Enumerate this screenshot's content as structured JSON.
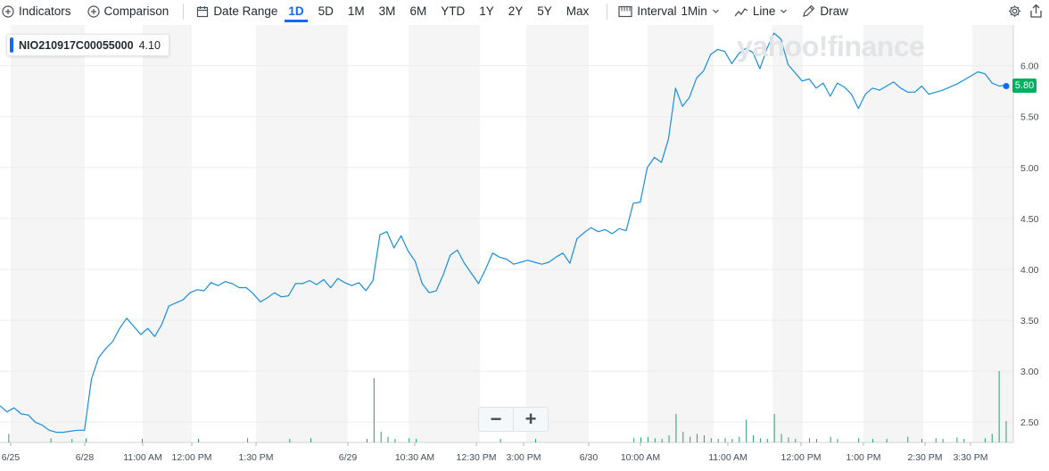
{
  "toolbar": {
    "indicators_label": "Indicators",
    "comparison_label": "Comparison",
    "date_range_label": "Date Range",
    "ranges": [
      "1D",
      "5D",
      "1M",
      "3M",
      "6M",
      "YTD",
      "1Y",
      "2Y",
      "5Y",
      "Max"
    ],
    "active_range": "1D",
    "interval_label": "Interval",
    "interval_value": "1Min",
    "line_label": "Line",
    "draw_label": "Draw"
  },
  "legend": {
    "symbol": "NIO210917C00055000",
    "value": "4.10"
  },
  "watermark": "yahoo!finance",
  "current_price": "5.80",
  "colors": {
    "line": "#1a8fd8",
    "accent": "#0f69ff",
    "price_tag": "#00b061",
    "band": "#f5f5f5",
    "volume": "#2a9b78"
  },
  "chart_data": {
    "type": "line",
    "title": "",
    "xlabel": "",
    "ylabel": "",
    "ylim": [
      2.3,
      6.4
    ],
    "yticks": [
      "6.00",
      "5.50",
      "5.00",
      "4.50",
      "4.00",
      "3.50",
      "3.00",
      "2.50"
    ],
    "xticks": [
      "6/25",
      "6/28",
      "11:00 AM",
      "12:00 PM",
      "1:30 PM",
      "6/29",
      "10:30 AM",
      "12:30 PM",
      "3:00 PM",
      "6/30",
      "10:00 AM",
      "11:00 AM",
      "12:00 PM",
      "1:00 PM",
      "2:30 PM",
      "3:30 PM"
    ],
    "grid": true,
    "series": [
      {
        "values": [
          2.66,
          2.6,
          2.64,
          2.58,
          2.57,
          2.5,
          2.47,
          2.42,
          2.4,
          2.4,
          2.41,
          2.42,
          2.42,
          2.92,
          3.13,
          3.22,
          3.29,
          3.42,
          3.52,
          3.44,
          3.36,
          3.42,
          3.34,
          3.46,
          3.64,
          3.67,
          3.7,
          3.77,
          3.8,
          3.79,
          3.87,
          3.84,
          3.88,
          3.86,
          3.82,
          3.82,
          3.76,
          3.68,
          3.72,
          3.77,
          3.73,
          3.74,
          3.86,
          3.86,
          3.89,
          3.85,
          3.9,
          3.82,
          3.91,
          3.87,
          3.84,
          3.87,
          3.79,
          3.89,
          4.34,
          4.37,
          4.21,
          4.33,
          4.18,
          4.08,
          3.86,
          3.77,
          3.79,
          3.95,
          4.14,
          4.19,
          4.06,
          3.96,
          3.86,
          4.0,
          4.16,
          4.12,
          4.1,
          4.05,
          4.07,
          4.09,
          4.07,
          4.05,
          4.07,
          4.12,
          4.16,
          4.06,
          4.3,
          4.36,
          4.41,
          4.37,
          4.39,
          4.35,
          4.4,
          4.38,
          4.65,
          4.66,
          5.0,
          5.1,
          5.05,
          5.28,
          5.78,
          5.6,
          5.69,
          5.88,
          5.95,
          6.11,
          6.16,
          6.14,
          6.02,
          6.12,
          6.17,
          6.13,
          5.97,
          6.17,
          6.32,
          6.26,
          6.01,
          5.93,
          5.85,
          5.87,
          5.78,
          5.83,
          5.7,
          5.83,
          5.79,
          5.72,
          5.58,
          5.72,
          5.78,
          5.76,
          5.8,
          5.84,
          5.78,
          5.74,
          5.74,
          5.8,
          5.72,
          5.74,
          5.76,
          5.79,
          5.82,
          5.86,
          5.9,
          5.94,
          5.92,
          5.83,
          5.8,
          5.81
        ]
      }
    ],
    "volume": [
      0,
      0.12,
      0,
      0,
      0,
      0,
      0,
      0.06,
      0,
      0,
      0.05,
      0,
      0.06,
      0,
      0,
      0,
      0,
      0,
      0,
      0,
      0.05,
      0,
      0,
      0,
      0,
      0,
      0,
      0,
      0.05,
      0,
      0,
      0,
      0,
      0,
      0,
      0.06,
      0,
      0,
      0,
      0,
      0,
      0.05,
      0,
      0,
      0.06,
      0,
      0,
      0,
      0,
      0,
      0,
      0,
      0.05,
      0.9,
      0.15,
      0.08,
      0.05,
      0,
      0.06,
      0.05,
      0,
      0,
      0,
      0,
      0,
      0,
      0,
      0,
      0,
      0,
      0,
      0.05,
      0,
      0,
      0,
      0,
      0.05,
      0,
      0,
      0,
      0,
      0,
      0,
      0,
      0,
      0,
      0,
      0,
      0,
      0,
      0.06,
      0.07,
      0.08,
      0.06,
      0.05,
      0.1,
      0.4,
      0.15,
      0.08,
      0.12,
      0.1,
      0.06,
      0.05,
      0.06,
      0.05,
      0.08,
      0.32,
      0.1,
      0.06,
      0.05,
      0.4,
      0.12,
      0.07,
      0.05,
      0,
      0.06,
      0.05,
      0,
      0.08,
      0.05,
      0,
      0,
      0.06,
      0,
      0.05,
      0,
      0.05,
      0,
      0,
      0.08,
      0,
      0.05,
      0,
      0.06,
      0.05,
      0,
      0.07,
      0.05,
      0,
      0,
      0.06,
      0.12,
      1.0,
      0.3
    ]
  }
}
